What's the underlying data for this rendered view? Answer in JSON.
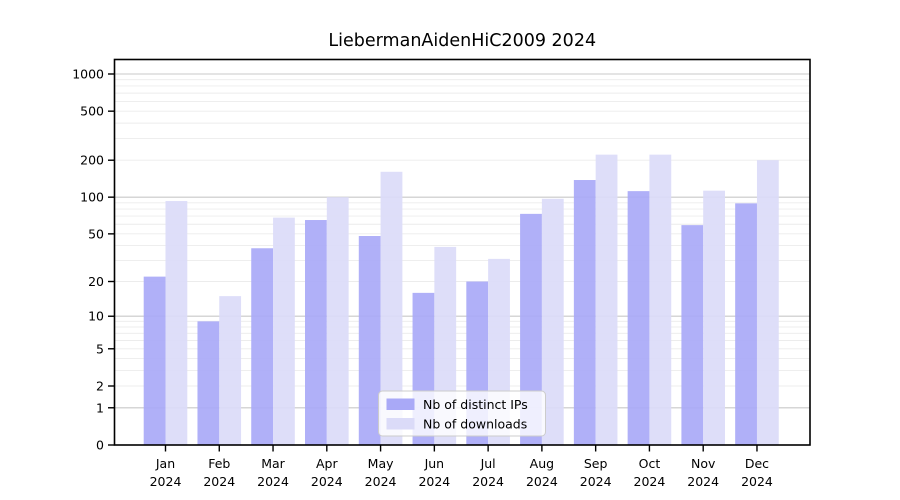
{
  "chart_data": {
    "type": "bar",
    "title": "LiebermanAidenHiC2009 2024",
    "scale": "log1p pseudo-log y axis",
    "grid": "on",
    "legend_position": "bottom-center-inside",
    "year": "2024",
    "months": [
      "Jan",
      "Feb",
      "Mar",
      "Apr",
      "May",
      "Jun",
      "Jul",
      "Aug",
      "Sep",
      "Oct",
      "Nov",
      "Dec"
    ],
    "categories": [
      "Jan 2024",
      "Feb 2024",
      "Mar 2024",
      "Apr 2024",
      "May 2024",
      "Jun 2024",
      "Jul 2024",
      "Aug 2024",
      "Sep 2024",
      "Oct 2024",
      "Nov 2024",
      "Dec 2024"
    ],
    "series": [
      {
        "name": "Nb of distinct IPs",
        "color": "#a9a9f7",
        "values": [
          22,
          9,
          38,
          65,
          48,
          16,
          20,
          73,
          138,
          112,
          59,
          89
        ]
      },
      {
        "name": "Nb of downloads",
        "color": "#dbdbf8",
        "values": [
          93,
          15,
          68,
          100,
          161,
          39,
          31,
          97,
          222,
          222,
          113,
          200
        ]
      }
    ],
    "yticks": [
      0,
      1,
      2,
      5,
      10,
      20,
      50,
      100,
      200,
      500,
      1000
    ],
    "ytick_labels": [
      "0",
      "1",
      "2",
      "5",
      "10",
      "20",
      "50",
      "100",
      "200",
      "500",
      "1000"
    ],
    "ylim": [
      0,
      1310
    ]
  },
  "colors": {
    "background": "#ffffff",
    "axis": "#000000",
    "major_grid": "#c9c9c9",
    "minor_grid": "#ececec",
    "legend_bg": "rgba(255,255,255,0.8)",
    "legend_border": "#cccccc"
  }
}
